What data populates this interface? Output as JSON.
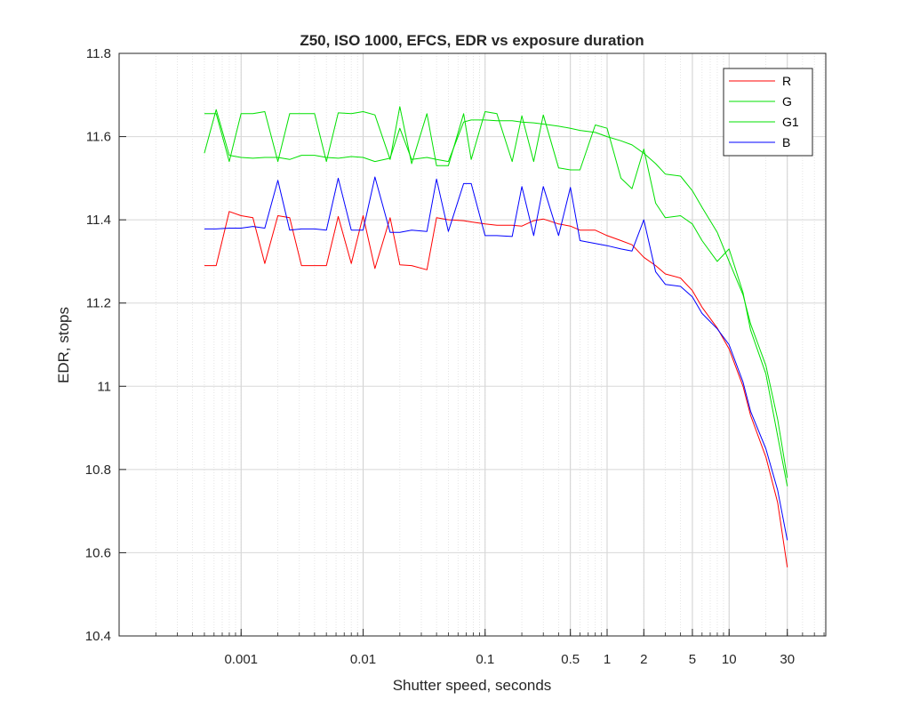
{
  "chart_data": {
    "type": "line",
    "title": "Z50, ISO 1000, EFCS, EDR vs exposure duration",
    "xlabel": "Shutter speed, seconds",
    "ylabel": "EDR, stops",
    "xscale": "log",
    "xlim": [
      0.0001,
      62
    ],
    "ylim": [
      10.4,
      11.8
    ],
    "grid": true,
    "minor_grid_x": true,
    "legend_position": "top-right",
    "x_tick_labels": [
      "0.001",
      "0.01",
      "0.1",
      "0.5",
      "1",
      "2",
      "5",
      "10",
      "30"
    ],
    "x_tick_values": [
      0.001,
      0.01,
      0.1,
      0.5,
      1,
      2,
      5,
      10,
      30
    ],
    "y_tick_labels": [
      "10.4",
      "10.6",
      "10.8",
      "11",
      "11.2",
      "11.4",
      "11.6",
      "11.8"
    ],
    "y_tick_values": [
      10.4,
      10.6,
      10.8,
      11,
      11.2,
      11.4,
      11.6,
      11.8
    ],
    "x": [
      0.0005,
      0.000625,
      0.0008,
      0.001,
      0.00125,
      0.0015625,
      0.002,
      0.0025,
      0.003125,
      0.004,
      0.005,
      0.00625,
      0.008,
      0.01,
      0.0125,
      0.016667,
      0.02,
      0.025,
      0.033333,
      0.04,
      0.05,
      0.066667,
      0.076923,
      0.1,
      0.125,
      0.166667,
      0.2,
      0.25,
      0.3,
      0.4,
      0.5,
      0.6,
      0.8,
      1.0,
      1.3,
      1.6,
      2,
      2.5,
      3,
      4,
      5,
      6,
      8,
      10,
      13,
      15,
      20,
      25,
      30
    ],
    "series": [
      {
        "name": "R",
        "color": "#ff0000",
        "values": [
          11.29,
          11.29,
          11.42,
          11.41,
          11.405,
          11.295,
          11.41,
          11.405,
          11.29,
          11.29,
          11.29,
          11.408,
          11.295,
          11.41,
          11.283,
          11.405,
          11.292,
          11.29,
          11.28,
          11.405,
          11.4,
          11.398,
          11.395,
          11.39,
          11.387,
          11.387,
          11.385,
          11.398,
          11.402,
          11.39,
          11.385,
          11.375,
          11.375,
          11.362,
          11.35,
          11.34,
          11.31,
          11.29,
          11.27,
          11.26,
          11.23,
          11.19,
          11.14,
          11.09,
          11.0,
          10.93,
          10.83,
          10.72,
          10.565
        ]
      },
      {
        "name": "G",
        "color": "#00e000",
        "values": [
          11.655,
          11.655,
          11.54,
          11.655,
          11.655,
          11.66,
          11.54,
          11.655,
          11.655,
          11.655,
          11.54,
          11.657,
          11.655,
          11.66,
          11.652,
          11.545,
          11.672,
          11.535,
          11.655,
          11.53,
          11.53,
          11.655,
          11.545,
          11.66,
          11.655,
          11.54,
          11.65,
          11.54,
          11.652,
          11.525,
          11.52,
          11.52,
          11.628,
          11.62,
          11.5,
          11.475,
          11.57,
          11.44,
          11.405,
          11.41,
          11.39,
          11.35,
          11.3,
          11.33,
          11.225,
          11.135,
          11.03,
          10.88,
          10.76
        ]
      },
      {
        "name": "G1",
        "color": "#00e000",
        "values": [
          11.56,
          11.665,
          11.555,
          11.55,
          11.548,
          11.55,
          11.55,
          11.545,
          11.555,
          11.555,
          11.55,
          11.548,
          11.552,
          11.55,
          11.54,
          11.548,
          11.62,
          11.545,
          11.55,
          11.545,
          11.54,
          11.635,
          11.64,
          11.64,
          11.638,
          11.638,
          11.635,
          11.633,
          11.63,
          11.625,
          11.62,
          11.615,
          11.61,
          11.6,
          11.59,
          11.58,
          11.56,
          11.535,
          11.51,
          11.505,
          11.47,
          11.43,
          11.37,
          11.3,
          11.22,
          11.15,
          11.05,
          10.92,
          10.78
        ]
      },
      {
        "name": "B",
        "color": "#0000ff",
        "values": [
          11.378,
          11.378,
          11.38,
          11.38,
          11.384,
          11.38,
          11.495,
          11.375,
          11.378,
          11.378,
          11.375,
          11.5,
          11.375,
          11.375,
          11.503,
          11.37,
          11.37,
          11.375,
          11.372,
          11.498,
          11.372,
          11.487,
          11.487,
          11.362,
          11.362,
          11.36,
          11.48,
          11.362,
          11.48,
          11.362,
          11.478,
          11.35,
          11.343,
          11.338,
          11.33,
          11.325,
          11.4,
          11.275,
          11.245,
          11.24,
          11.215,
          11.175,
          11.138,
          11.1,
          11.01,
          10.94,
          10.85,
          10.75,
          10.63
        ]
      }
    ]
  }
}
